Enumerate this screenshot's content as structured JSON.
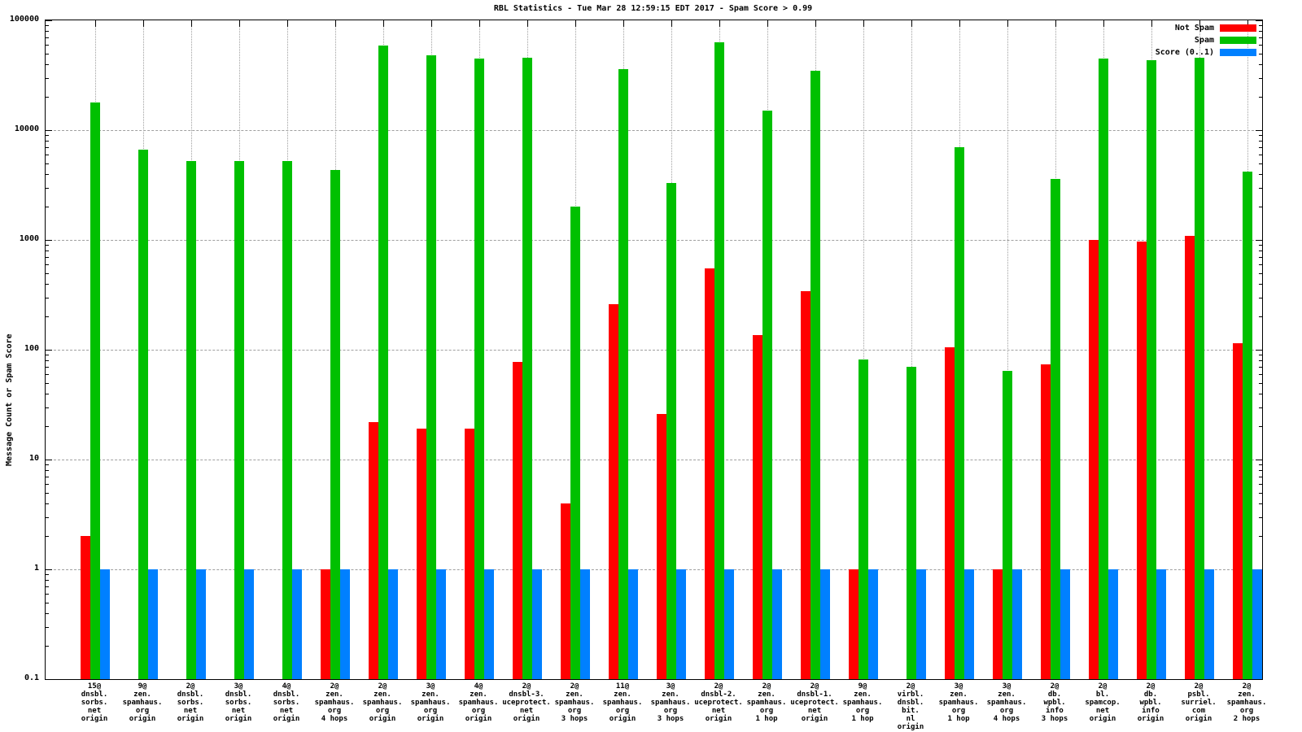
{
  "title": "RBL Statistics - Tue Mar 28 12:59:15 EDT 2017 - Spam Score > 0.99",
  "y_axis": {
    "label": "Message Count or Spam Score",
    "ticks": [
      "100000",
      "10000",
      "1000",
      "100",
      "10",
      "1",
      "0.1"
    ]
  },
  "legend": {
    "position": "top-right",
    "items": [
      {
        "label": "Not Spam",
        "color": "#ff0000"
      },
      {
        "label": "Spam",
        "color": "#00c000"
      },
      {
        "label": "Score (0..1)",
        "color": "#0080ff"
      }
    ]
  },
  "chart_data": {
    "type": "bar",
    "scale": "log",
    "title": "RBL Statistics - Tue Mar 28 12:59:15 EDT 2017 - Spam Score > 0.99",
    "xlabel": "",
    "ylabel": "Message Count or Spam Score",
    "ylim": [
      0.1,
      100000
    ],
    "grid": true,
    "legend_position": "top-right",
    "categories": [
      [
        "15@",
        "dnsbl.",
        "sorbs.",
        "net",
        "origin"
      ],
      [
        "9@",
        "zen.",
        "spamhaus.",
        "org",
        "origin"
      ],
      [
        "2@",
        "dnsbl.",
        "sorbs.",
        "net",
        "origin"
      ],
      [
        "3@",
        "dnsbl.",
        "sorbs.",
        "net",
        "origin"
      ],
      [
        "4@",
        "dnsbl.",
        "sorbs.",
        "net",
        "origin"
      ],
      [
        "2@",
        "zen.",
        "spamhaus.",
        "org",
        "4 hops"
      ],
      [
        "2@",
        "zen.",
        "spamhaus.",
        "org",
        "origin"
      ],
      [
        "3@",
        "zen.",
        "spamhaus.",
        "org",
        "origin"
      ],
      [
        "4@",
        "zen.",
        "spamhaus.",
        "org",
        "origin"
      ],
      [
        "2@",
        "dnsbl-3.",
        "uceprotect.",
        "net",
        "origin"
      ],
      [
        "2@",
        "zen.",
        "spamhaus.",
        "org",
        "3 hops"
      ],
      [
        "11@",
        "zen.",
        "spamhaus.",
        "org",
        "origin"
      ],
      [
        "3@",
        "zen.",
        "spamhaus.",
        "org",
        "3 hops"
      ],
      [
        "2@",
        "dnsbl-2.",
        "uceprotect.",
        "net",
        "origin"
      ],
      [
        "2@",
        "zen.",
        "spamhaus.",
        "org",
        "1 hop"
      ],
      [
        "2@",
        "dnsbl-1.",
        "uceprotect.",
        "net",
        "origin"
      ],
      [
        "9@",
        "zen.",
        "spamhaus.",
        "org",
        "1 hop"
      ],
      [
        "2@",
        "virbl.",
        "dnsbl.",
        "bit.",
        "nl",
        "origin"
      ],
      [
        "3@",
        "zen.",
        "spamhaus.",
        "org",
        "1 hop"
      ],
      [
        "3@",
        "zen.",
        "spamhaus.",
        "org",
        "4 hops"
      ],
      [
        "2@",
        "db.",
        "wpbl.",
        "info",
        "3 hops"
      ],
      [
        "2@",
        "bl.",
        "spamcop.",
        "net",
        "origin"
      ],
      [
        "2@",
        "db.",
        "wpbl.",
        "info",
        "origin"
      ],
      [
        "2@",
        "psbl.",
        "surriel.",
        "com",
        "origin"
      ],
      [
        "2@",
        "zen.",
        "spamhaus.",
        "org",
        "2 hops"
      ]
    ],
    "series": [
      {
        "name": "Not Spam",
        "color": "#ff0000",
        "values": [
          2,
          null,
          null,
          null,
          null,
          1,
          22,
          19,
          19,
          78,
          4,
          260,
          26,
          550,
          135,
          340,
          1,
          null,
          105,
          1,
          74,
          1000,
          960,
          1080,
          115
        ]
      },
      {
        "name": "Spam",
        "color": "#00c000",
        "values": [
          18000,
          6600,
          5200,
          5200,
          5200,
          4300,
          59000,
          48000,
          45000,
          46000,
          2000,
          36000,
          3300,
          63000,
          15000,
          35000,
          82,
          70,
          7000,
          64,
          3600,
          45000,
          43000,
          46000,
          4200
        ]
      },
      {
        "name": "Score (0..1)",
        "color": "#0080ff",
        "values": [
          1,
          1,
          1,
          1,
          1,
          1,
          1,
          1,
          1,
          1,
          1,
          1,
          1,
          1,
          1,
          1,
          1,
          1,
          1,
          1,
          1,
          1,
          1,
          1,
          1
        ]
      }
    ]
  }
}
